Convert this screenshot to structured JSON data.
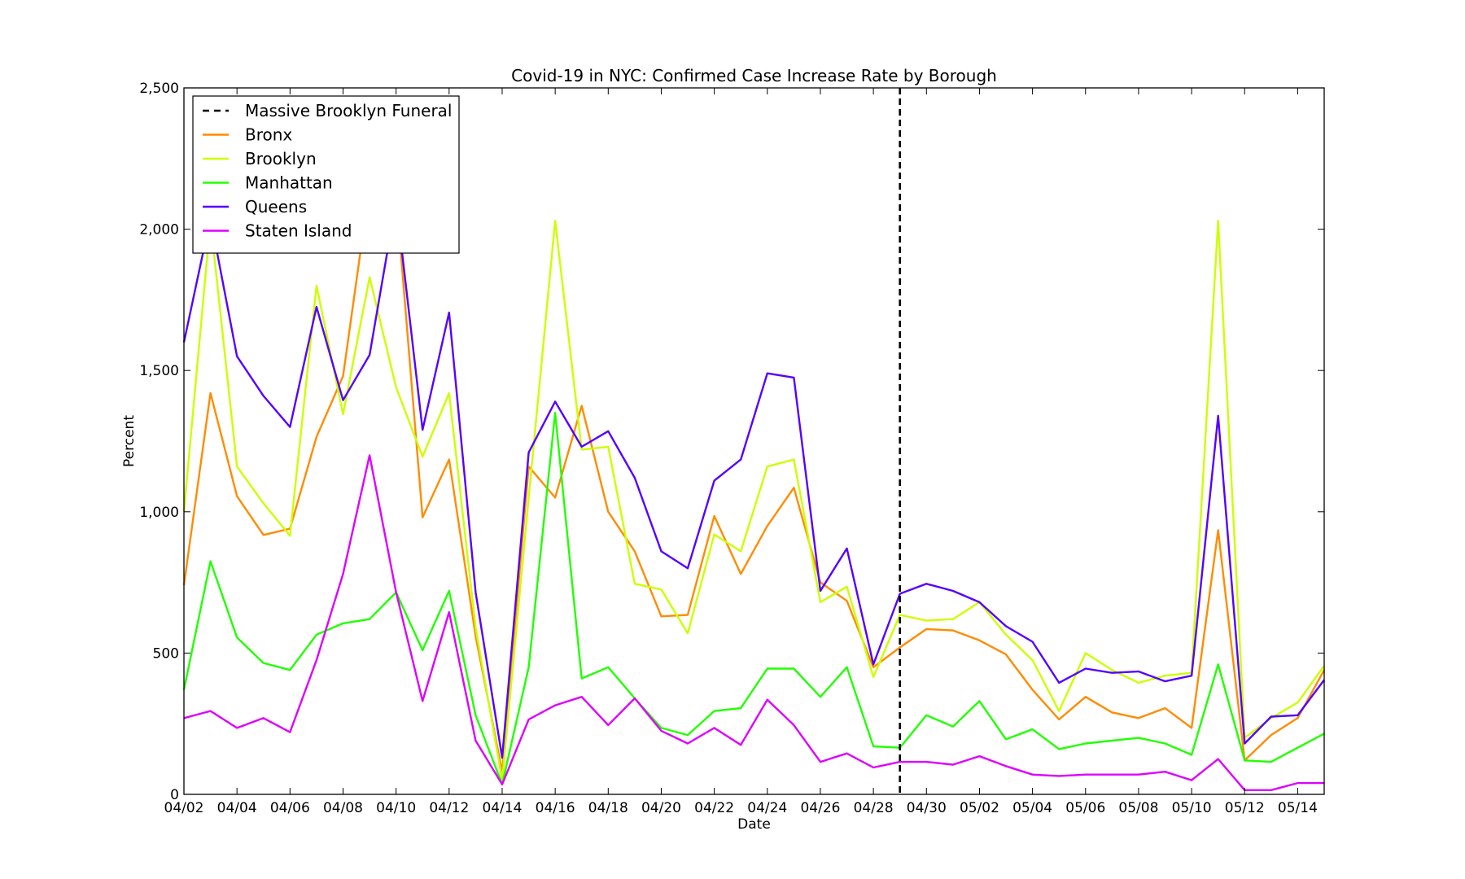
{
  "chart_data": {
    "type": "line",
    "title": "Covid-19 in NYC: Confirmed Case Increase Rate by Borough",
    "xlabel": "Date",
    "ylabel": "Percent",
    "ylim": [
      0,
      2500
    ],
    "yticks": [
      0,
      500,
      1000,
      1500,
      2000,
      2500
    ],
    "ytick_labels": [
      "0",
      "500",
      "1,000",
      "1,500",
      "2,000",
      "2,500"
    ],
    "x": [
      "04/02",
      "04/03",
      "04/04",
      "04/05",
      "04/06",
      "04/07",
      "04/08",
      "04/09",
      "04/10",
      "04/11",
      "04/12",
      "04/13",
      "04/14",
      "04/15",
      "04/16",
      "04/17",
      "04/18",
      "04/19",
      "04/20",
      "04/21",
      "04/22",
      "04/23",
      "04/24",
      "04/25",
      "04/26",
      "04/27",
      "04/28",
      "04/29",
      "04/30",
      "05/01",
      "05/02",
      "05/03",
      "05/04",
      "05/05",
      "05/06",
      "05/07",
      "05/08",
      "05/09",
      "05/10",
      "05/11",
      "05/12",
      "05/13",
      "05/14",
      "05/15"
    ],
    "xtick_labels": [
      "04/02",
      "04/04",
      "04/06",
      "04/08",
      "04/10",
      "04/12",
      "04/14",
      "04/16",
      "04/18",
      "04/20",
      "04/22",
      "04/24",
      "04/26",
      "04/28",
      "04/30",
      "05/02",
      "05/04",
      "05/06",
      "05/08",
      "05/10",
      "05/12",
      "05/14"
    ],
    "event_line": {
      "name": "Massive Brooklyn Funeral",
      "x": "04/29",
      "color": "#000000"
    },
    "legend_position": "top-left",
    "grid": false,
    "series": [
      {
        "name": "Bronx",
        "color": "#ff8c00",
        "values": [
          740,
          1420,
          1055,
          918,
          940,
          1265,
          1480,
          2150,
          2120,
          980,
          1185,
          560,
          80,
          1160,
          1050,
          1375,
          1000,
          860,
          630,
          635,
          985,
          780,
          950,
          1085,
          750,
          685,
          450,
          520,
          585,
          580,
          545,
          495,
          370,
          265,
          345,
          290,
          270,
          305,
          235,
          935,
          120,
          210,
          270,
          440
        ]
      },
      {
        "name": "Brooklyn",
        "color": "#ccff00",
        "values": [
          1000,
          2030,
          1160,
          1030,
          915,
          1800,
          1345,
          1830,
          1440,
          1195,
          1420,
          590,
          50,
          1050,
          2030,
          1220,
          1230,
          745,
          725,
          570,
          920,
          860,
          1160,
          1185,
          680,
          735,
          415,
          635,
          615,
          620,
          680,
          565,
          475,
          295,
          500,
          440,
          395,
          420,
          430,
          2030,
          200,
          270,
          325,
          455
        ]
      },
      {
        "name": "Manhattan",
        "color": "#22ff00",
        "values": [
          370,
          825,
          555,
          465,
          440,
          565,
          605,
          620,
          715,
          510,
          720,
          280,
          35,
          450,
          1350,
          410,
          450,
          340,
          235,
          210,
          295,
          305,
          445,
          445,
          345,
          450,
          170,
          165,
          280,
          240,
          330,
          195,
          230,
          160,
          180,
          190,
          200,
          180,
          140,
          460,
          120,
          115,
          165,
          215
        ]
      },
      {
        "name": "Queens",
        "color": "#5500ff",
        "values": [
          1600,
          2040,
          1550,
          1410,
          1300,
          1725,
          1395,
          1555,
          2100,
          1290,
          1705,
          715,
          130,
          1210,
          1390,
          1230,
          1285,
          1120,
          860,
          800,
          1110,
          1185,
          1490,
          1475,
          720,
          870,
          460,
          710,
          745,
          720,
          680,
          595,
          540,
          395,
          445,
          430,
          435,
          400,
          420,
          1340,
          180,
          275,
          280,
          405
        ]
      },
      {
        "name": "Staten Island",
        "color": "#dd00ff",
        "values": [
          270,
          295,
          235,
          270,
          220,
          475,
          780,
          1200,
          715,
          330,
          645,
          190,
          35,
          265,
          315,
          345,
          245,
          340,
          225,
          180,
          235,
          175,
          335,
          245,
          115,
          145,
          95,
          115,
          115,
          105,
          135,
          100,
          70,
          65,
          70,
          70,
          70,
          80,
          50,
          125,
          15,
          15,
          40,
          40
        ]
      }
    ]
  }
}
